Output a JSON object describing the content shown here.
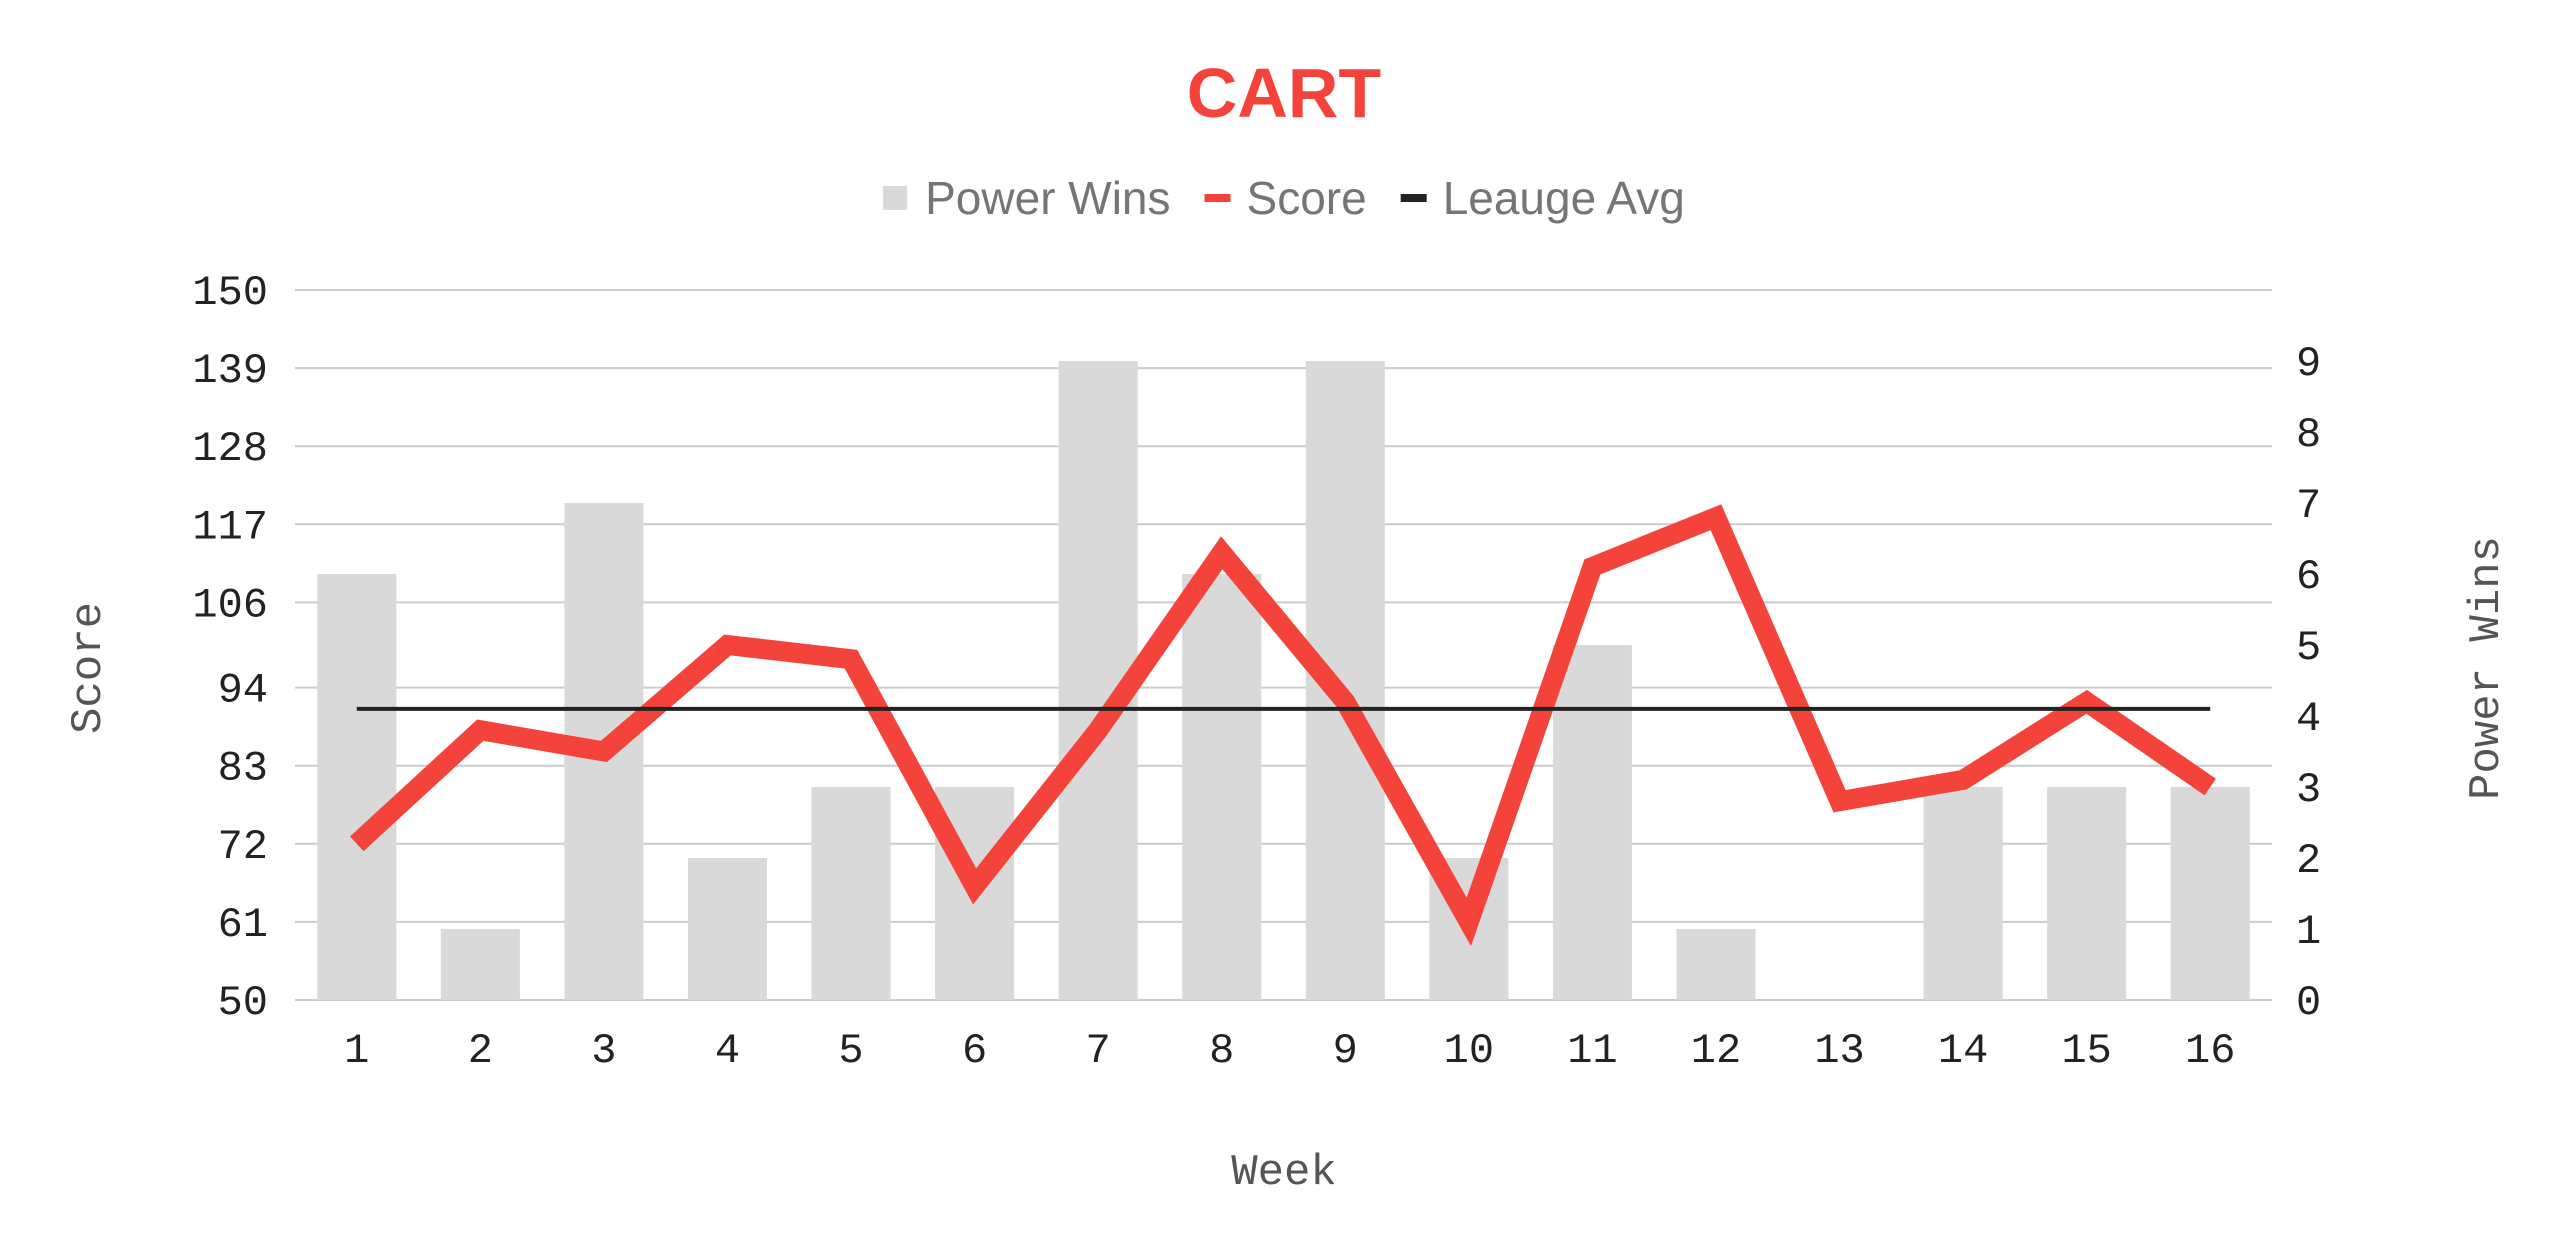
{
  "chart_data": {
    "type": "bar",
    "title": "CART",
    "xlabel": "Week",
    "ylabel": "Score",
    "y2label": "Power Wins",
    "categories": [
      "1",
      "2",
      "3",
      "4",
      "5",
      "6",
      "7",
      "8",
      "9",
      "10",
      "11",
      "12",
      "13",
      "14",
      "15",
      "16"
    ],
    "ylim": [
      50,
      150
    ],
    "yticks": [
      50,
      61,
      72,
      83,
      94,
      106,
      117,
      128,
      139,
      150
    ],
    "y2lim": [
      0,
      10
    ],
    "y2ticks": [
      0,
      1,
      2,
      3,
      4,
      5,
      6,
      7,
      8,
      9
    ],
    "grid": true,
    "legend_position": "top",
    "series": [
      {
        "name": "Power Wins",
        "type": "bar",
        "axis": "right",
        "color": "#d9d9d9",
        "values": [
          6,
          1,
          7,
          2,
          3,
          3,
          9,
          6,
          9,
          2,
          5,
          1,
          0,
          3,
          3,
          3
        ]
      },
      {
        "name": "Score",
        "type": "line",
        "axis": "left",
        "color": "#f4433b",
        "values": [
          72,
          88,
          85,
          100,
          98,
          66,
          88,
          113,
          92,
          61,
          111,
          118,
          78,
          81,
          92,
          80
        ]
      },
      {
        "name": "Leauge Avg",
        "type": "line",
        "axis": "left",
        "color": "#222222",
        "values": [
          91,
          91,
          91,
          91,
          91,
          91,
          91,
          91,
          91,
          91,
          91,
          91,
          91,
          91,
          91,
          91
        ]
      }
    ]
  }
}
